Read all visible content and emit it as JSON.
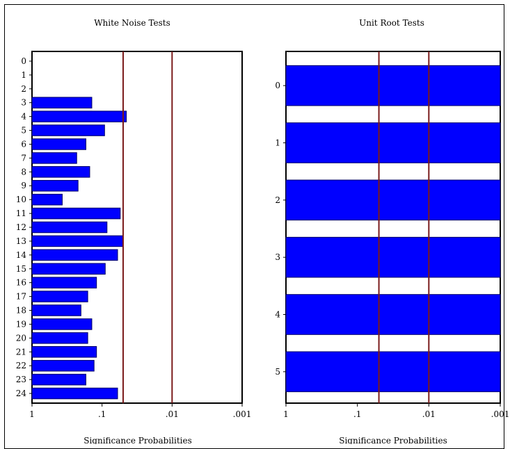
{
  "colors": {
    "bar": "#0000ff",
    "bar_edge": "#000066",
    "ref_line": "#7a1a1a"
  },
  "chart_data": [
    {
      "type": "bar",
      "orientation": "horizontal",
      "title": "White Noise Tests",
      "xlabel": "Significance Probabilities",
      "x_scale": "log-reversed",
      "xlim": [
        1,
        0.001
      ],
      "xticks": [
        "1",
        ".1",
        ".01",
        ".001"
      ],
      "reference_lines": [
        0.05,
        0.01
      ],
      "grid": false,
      "categories": [
        "0",
        "1",
        "2",
        "3",
        "4",
        "5",
        "6",
        "7",
        "8",
        "9",
        "10",
        "11",
        "12",
        "13",
        "14",
        "15",
        "16",
        "17",
        "18",
        "19",
        "20",
        "21",
        "22",
        "23",
        "24"
      ],
      "values": [
        1,
        1,
        1,
        0.14,
        0.045,
        0.092,
        0.17,
        0.23,
        0.15,
        0.22,
        0.37,
        0.055,
        0.085,
        0.05,
        0.06,
        0.09,
        0.12,
        0.16,
        0.2,
        0.14,
        0.16,
        0.12,
        0.13,
        0.17,
        0.06
      ]
    },
    {
      "type": "bar",
      "orientation": "horizontal",
      "title": "Unit Root Tests",
      "xlabel": "Significance Probabilities",
      "x_scale": "log-reversed",
      "xlim": [
        1,
        0.001
      ],
      "xticks": [
        "1",
        ".1",
        ".01",
        ".001"
      ],
      "reference_lines": [
        0.05,
        0.01
      ],
      "grid": false,
      "categories": [
        "0",
        "1",
        "2",
        "3",
        "4",
        "5"
      ],
      "values": [
        0.001,
        0.001,
        0.001,
        0.001,
        0.001,
        0.001
      ]
    }
  ]
}
